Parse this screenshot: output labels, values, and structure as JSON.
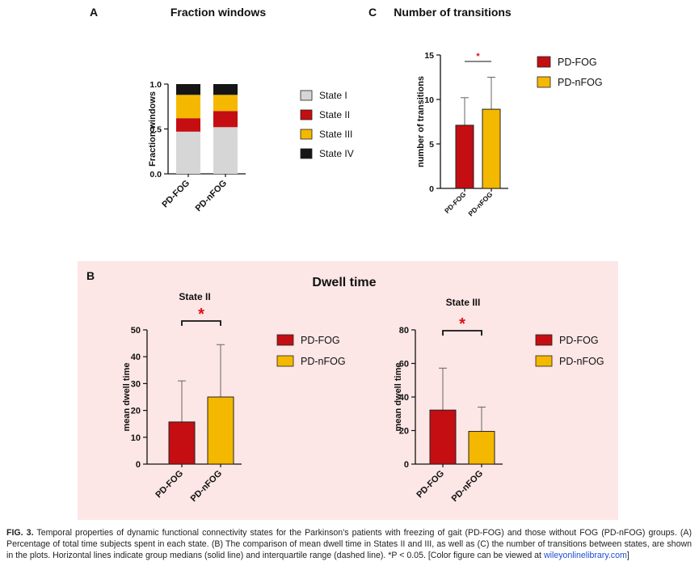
{
  "colors": {
    "state1": "#d6d6d6",
    "state2": "#c40e12",
    "state3": "#f5b800",
    "state4": "#151515",
    "pdfog": "#c40e12",
    "pdnfog": "#f5b800",
    "sig": "#e01010",
    "panel_b_bg": "#fde6e6"
  },
  "caption": {
    "label": "FIG. 3.",
    "text": "Temporal properties of dynamic functional connectivity states for the Parkinson's patients with freezing of gait (PD-FOG) and those without FOG (PD-nFOG) groups. (A) Percentage of total time subjects spent in each state. (B) The comparison of mean dwell time in States II and III, as well as (C) the number of transitions between states, are shown in the plots. Horizontal lines indicate group medians (solid line) and interquartile range (dashed line). *P < 0.05. [Color figure can be viewed at",
    "link": "wileyonlinelibrary.com",
    "end": "]"
  },
  "chart_data": [
    {
      "id": "A",
      "panel_label": "A",
      "type": "bar",
      "stacked": true,
      "title": "Fraction windows",
      "ylabel": "Fraction windows",
      "xlabel": "",
      "ylim": [
        0,
        1.0
      ],
      "yticks": [
        "0.0",
        "0.5",
        "1.0"
      ],
      "categories": [
        "PD-FOG",
        "PD-nFOG"
      ],
      "legend_position": "right",
      "series": [
        {
          "name": "State I",
          "color_key": "state1",
          "values": [
            0.47,
            0.52
          ]
        },
        {
          "name": "State II",
          "color_key": "state2",
          "values": [
            0.15,
            0.18
          ]
        },
        {
          "name": "State III",
          "color_key": "state3",
          "values": [
            0.26,
            0.18
          ]
        },
        {
          "name": "State IV",
          "color_key": "state4",
          "values": [
            0.12,
            0.12
          ]
        }
      ]
    },
    {
      "id": "C",
      "panel_label": "C",
      "type": "bar",
      "title": "Number of transitions",
      "ylabel": "number of transitions",
      "xlabel": "",
      "ylim": [
        0,
        15
      ],
      "yticks": [
        "0",
        "5",
        "10",
        "15"
      ],
      "categories": [
        "PD-FOG",
        "PD-nFOG"
      ],
      "values": [
        7.1,
        8.9
      ],
      "errors": [
        3.1,
        3.6
      ],
      "color_keys": [
        "pdfog",
        "pdnfog"
      ],
      "significance": "*",
      "legend_position": "right",
      "legend": [
        {
          "name": "PD-FOG",
          "color_key": "pdfog"
        },
        {
          "name": "PD-nFOG",
          "color_key": "pdnfog"
        }
      ]
    },
    {
      "id": "B1",
      "panel_label": "B",
      "group_title": "Dwell time",
      "type": "bar",
      "title": "State II",
      "ylabel": "mean dwell time",
      "xlabel": "",
      "ylim": [
        0,
        50
      ],
      "yticks": [
        "0",
        "10",
        "20",
        "30",
        "40",
        "50"
      ],
      "categories": [
        "PD-FOG",
        "PD-nFOG"
      ],
      "values": [
        15.7,
        25.0
      ],
      "errors": [
        15.3,
        19.5
      ],
      "color_keys": [
        "pdfog",
        "pdnfog"
      ],
      "significance": "*",
      "legend_position": "right",
      "legend": [
        {
          "name": "PD-FOG",
          "color_key": "pdfog"
        },
        {
          "name": "PD-nFOG",
          "color_key": "pdnfog"
        }
      ]
    },
    {
      "id": "B2",
      "type": "bar",
      "title": "State III",
      "ylabel": "mean dwell time",
      "xlabel": "",
      "ylim": [
        0,
        80
      ],
      "yticks": [
        "0",
        "20",
        "40",
        "60",
        "80"
      ],
      "categories": [
        "PD-FOG",
        "PD-nFOG"
      ],
      "values": [
        32.2,
        19.5
      ],
      "errors": [
        25.0,
        14.5
      ],
      "color_keys": [
        "pdfog",
        "pdnfog"
      ],
      "significance": "*",
      "legend_position": "right",
      "legend": [
        {
          "name": "PD-FOG",
          "color_key": "pdfog"
        },
        {
          "name": "PD-nFOG",
          "color_key": "pdnfog"
        }
      ]
    }
  ]
}
